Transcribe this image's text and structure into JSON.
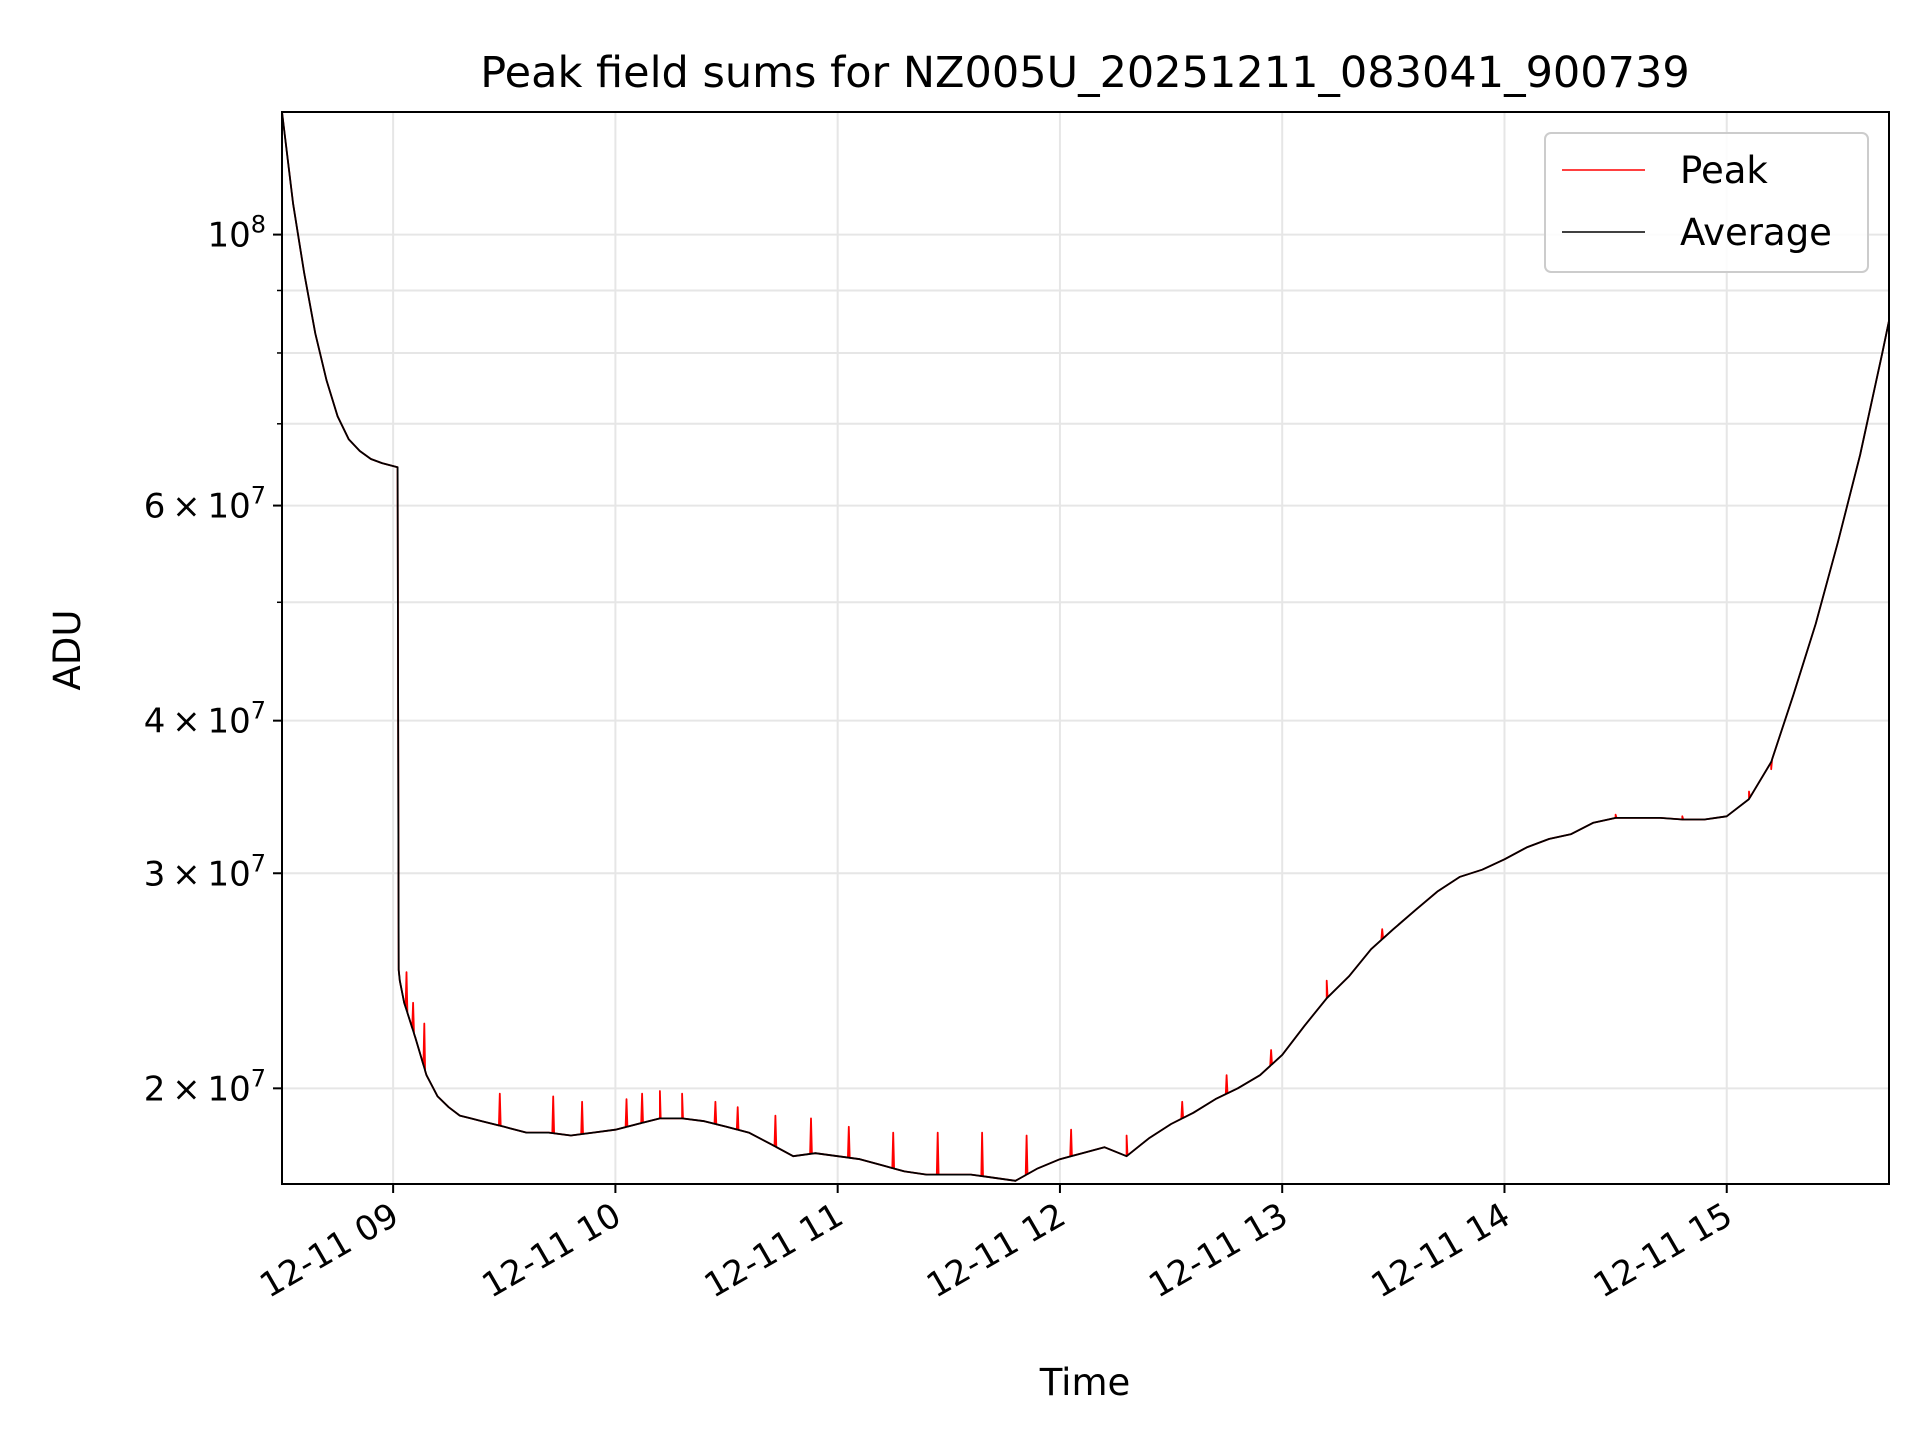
{
  "chart_data": {
    "type": "line",
    "title": "Peak field sums for NZ005U_20251211_083041_900739",
    "xlabel": "Time",
    "ylabel": "ADU",
    "yscale": "log",
    "ylim": [
      16700000,
      126000000
    ],
    "xlim_hours": [
      8.5,
      15.73
    ],
    "x_ticks": [
      {
        "hour": 9,
        "label": "12-11 09"
      },
      {
        "hour": 10,
        "label": "12-11 10"
      },
      {
        "hour": 11,
        "label": "12-11 11"
      },
      {
        "hour": 12,
        "label": "12-11 12"
      },
      {
        "hour": 13,
        "label": "12-11 13"
      },
      {
        "hour": 14,
        "label": "12-11 14"
      },
      {
        "hour": 15,
        "label": "12-11 15"
      }
    ],
    "y_major_ticks": [
      {
        "value": 20000000,
        "mantissa": "2",
        "base": "10",
        "exp": "7"
      },
      {
        "value": 30000000,
        "mantissa": "3",
        "base": "10",
        "exp": "7"
      },
      {
        "value": 40000000,
        "mantissa": "4",
        "base": "10",
        "exp": "7"
      },
      {
        "value": 60000000,
        "mantissa": "6",
        "base": "10",
        "exp": "7"
      },
      {
        "value": 100000000,
        "mantissa": "",
        "base": "10",
        "exp": "8"
      }
    ],
    "y_minor_ticks": [
      50000000,
      70000000,
      80000000,
      90000000
    ],
    "grid": true,
    "legend": {
      "position": "top-right",
      "entries": [
        {
          "label": "Peak",
          "color": "#ff0000"
        },
        {
          "label": "Average",
          "color": "#000000"
        }
      ]
    },
    "series": [
      {
        "name": "Average",
        "color": "#000000",
        "x_hours": [
          8.5,
          8.55,
          8.6,
          8.65,
          8.7,
          8.75,
          8.8,
          8.85,
          8.9,
          8.95,
          9.02,
          9.025,
          9.03,
          9.05,
          9.1,
          9.15,
          9.2,
          9.25,
          9.3,
          9.35,
          9.4,
          9.5,
          9.6,
          9.7,
          9.8,
          9.9,
          10.0,
          10.1,
          10.2,
          10.3,
          10.4,
          10.5,
          10.6,
          10.7,
          10.8,
          10.9,
          11.0,
          11.1,
          11.2,
          11.3,
          11.4,
          11.5,
          11.6,
          11.7,
          11.8,
          11.9,
          12.0,
          12.1,
          12.2,
          12.3,
          12.4,
          12.5,
          12.6,
          12.7,
          12.8,
          12.9,
          13.0,
          13.1,
          13.2,
          13.3,
          13.4,
          13.5,
          13.6,
          13.7,
          13.8,
          13.9,
          14.0,
          14.1,
          14.2,
          14.3,
          14.4,
          14.5,
          14.6,
          14.7,
          14.8,
          14.9,
          15.0,
          15.1,
          15.2,
          15.3,
          15.4,
          15.5,
          15.6,
          15.7,
          15.73
        ],
        "values": [
          126000000,
          106000000,
          93000000,
          83000000,
          76000000,
          71000000,
          68000000,
          66500000,
          65500000,
          65000000,
          64500000,
          25000000,
          24500000,
          23500000,
          22000000,
          20500000,
          19700000,
          19300000,
          19000000,
          18900000,
          18800000,
          18600000,
          18400000,
          18400000,
          18300000,
          18400000,
          18500000,
          18700000,
          18900000,
          18900000,
          18800000,
          18600000,
          18400000,
          18000000,
          17600000,
          17700000,
          17600000,
          17500000,
          17300000,
          17100000,
          17000000,
          17000000,
          17000000,
          16900000,
          16800000,
          17200000,
          17500000,
          17700000,
          17900000,
          17600000,
          18200000,
          18700000,
          19100000,
          19600000,
          20000000,
          20500000,
          21300000,
          22500000,
          23700000,
          24700000,
          26000000,
          27000000,
          28000000,
          29000000,
          29800000,
          30200000,
          30800000,
          31500000,
          32000000,
          32300000,
          33000000,
          33300000,
          33300000,
          33300000,
          33200000,
          33200000,
          33400000,
          34500000,
          37000000,
          42000000,
          48000000,
          56000000,
          66000000,
          80000000,
          85000000
        ]
      },
      {
        "name": "Peak",
        "color": "#ff0000",
        "note": "Tracks Average with frequent upward spikes of roughly 1-2.5 x 10^6 ADU; spike amplitudes in spikes list",
        "spikes": [
          {
            "hour": 9.06,
            "value": 24900000
          },
          {
            "hour": 9.09,
            "value": 23500000
          },
          {
            "hour": 9.14,
            "value": 22600000
          },
          {
            "hour": 9.48,
            "value": 19800000
          },
          {
            "hour": 9.72,
            "value": 19700000
          },
          {
            "hour": 9.85,
            "value": 19500000
          },
          {
            "hour": 10.05,
            "value": 19600000
          },
          {
            "hour": 10.12,
            "value": 19800000
          },
          {
            "hour": 10.2,
            "value": 19900000
          },
          {
            "hour": 10.3,
            "value": 19800000
          },
          {
            "hour": 10.45,
            "value": 19500000
          },
          {
            "hour": 10.55,
            "value": 19300000
          },
          {
            "hour": 10.72,
            "value": 19000000
          },
          {
            "hour": 10.88,
            "value": 18900000
          },
          {
            "hour": 11.05,
            "value": 18600000
          },
          {
            "hour": 11.25,
            "value": 18400000
          },
          {
            "hour": 11.45,
            "value": 18400000
          },
          {
            "hour": 11.65,
            "value": 18400000
          },
          {
            "hour": 11.85,
            "value": 18300000
          },
          {
            "hour": 12.05,
            "value": 18500000
          },
          {
            "hour": 12.3,
            "value": 18300000
          },
          {
            "hour": 12.55,
            "value": 19500000
          },
          {
            "hour": 12.75,
            "value": 20500000
          },
          {
            "hour": 12.95,
            "value": 21500000
          },
          {
            "hour": 13.2,
            "value": 24500000
          },
          {
            "hour": 13.45,
            "value": 27000000
          },
          {
            "hour": 13.7,
            "value": 29000000
          },
          {
            "hour": 13.95,
            "value": 30500000
          },
          {
            "hour": 14.2,
            "value": 32000000
          },
          {
            "hour": 14.5,
            "value": 33500000
          },
          {
            "hour": 14.8,
            "value": 33400000
          },
          {
            "hour": 15.1,
            "value": 35000000
          },
          {
            "hour": 15.2,
            "value": 36500000
          }
        ]
      }
    ]
  }
}
